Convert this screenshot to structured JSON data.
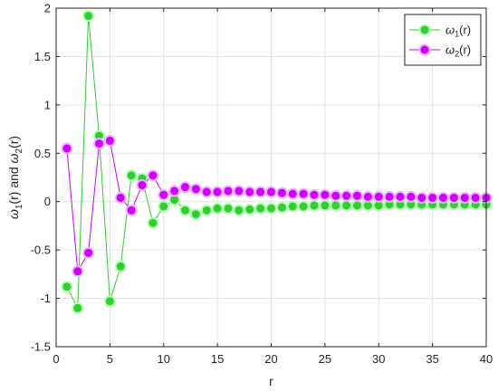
{
  "chart_data": {
    "type": "line",
    "title": "",
    "xlabel": "r",
    "ylabel": "ω1(r) and ω2(r)",
    "xlim": [
      0,
      40
    ],
    "ylim": [
      -1.5,
      2
    ],
    "xticks": [
      0,
      5,
      10,
      15,
      20,
      25,
      30,
      35,
      40
    ],
    "xtick_labels": [
      "0",
      "5",
      "10",
      "15",
      "20",
      "25",
      "30",
      "35",
      "40"
    ],
    "yticks": [
      -1.5,
      -1,
      -0.5,
      0,
      0.5,
      1,
      1.5,
      2
    ],
    "ytick_labels": [
      "-1.5",
      "-1",
      "-0.5",
      "0",
      "0.5",
      "1",
      "1.5",
      "2"
    ],
    "grid": true,
    "legend_position": "top-right",
    "x": [
      1,
      2,
      3,
      4,
      5,
      6,
      7,
      8,
      9,
      10,
      11,
      12,
      13,
      14,
      15,
      16,
      17,
      18,
      19,
      20,
      21,
      22,
      23,
      24,
      25,
      26,
      27,
      28,
      29,
      30,
      31,
      32,
      33,
      34,
      35,
      36,
      37,
      38,
      39,
      40
    ],
    "series": [
      {
        "name": "ω1(r)",
        "legend_main": "ω",
        "legend_sub": "1",
        "legend_tail": "(r)",
        "color": "#33cc33",
        "halo": "#b3ffb3",
        "values": [
          -0.88,
          -1.1,
          1.92,
          0.68,
          -1.03,
          -0.67,
          0.27,
          0.24,
          -0.22,
          -0.05,
          0.02,
          -0.09,
          -0.13,
          -0.09,
          -0.07,
          -0.07,
          -0.09,
          -0.08,
          -0.07,
          -0.07,
          -0.06,
          -0.05,
          -0.05,
          -0.04,
          -0.04,
          -0.04,
          -0.04,
          -0.04,
          -0.04,
          -0.04,
          -0.03,
          -0.03,
          -0.03,
          -0.03,
          -0.03,
          -0.03,
          -0.03,
          -0.03,
          -0.03,
          -0.03
        ]
      },
      {
        "name": "ω2(r)",
        "legend_main": "ω",
        "legend_sub": "2",
        "legend_tail": "(r)",
        "color": "#cc00ff",
        "halo": "#f0b3ff",
        "values": [
          0.55,
          -0.72,
          -0.53,
          0.6,
          0.63,
          0.04,
          -0.09,
          0.17,
          0.27,
          0.07,
          0.11,
          0.15,
          0.13,
          0.1,
          0.1,
          0.11,
          0.11,
          0.1,
          0.1,
          0.1,
          0.09,
          0.08,
          0.08,
          0.07,
          0.07,
          0.06,
          0.06,
          0.06,
          0.05,
          0.05,
          0.05,
          0.05,
          0.05,
          0.04,
          0.04,
          0.04,
          0.04,
          0.04,
          0.04,
          0.04
        ]
      }
    ]
  }
}
